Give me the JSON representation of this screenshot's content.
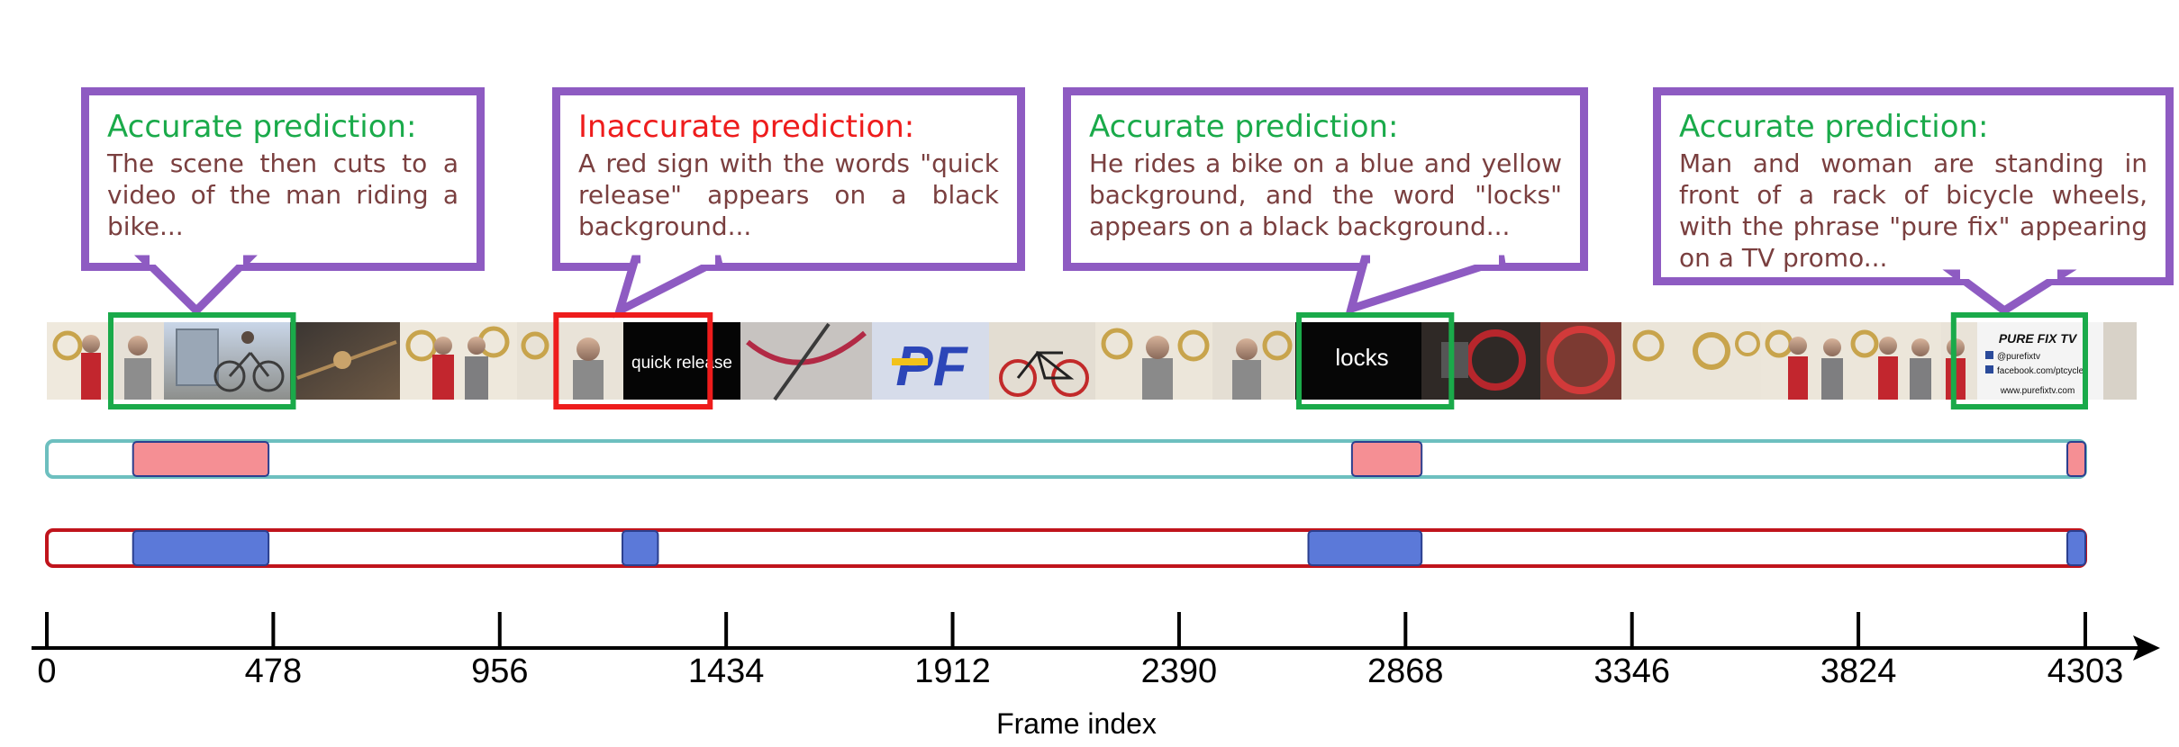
{
  "callouts": [
    {
      "status": "accurate",
      "heading": "Accurate prediction:",
      "text": "The scene then cuts to a video of the man riding a bike..."
    },
    {
      "status": "inaccurate",
      "heading": "Inaccurate prediction:",
      "text": "A red sign with the words \"quick release\" appears on a black background..."
    },
    {
      "status": "accurate",
      "heading": "Accurate prediction:",
      "text": "He rides a bike on a blue and yellow background, and the word \"locks\" appears on a black background..."
    },
    {
      "status": "accurate",
      "heading": "Accurate prediction:",
      "text": "Man and woman are standing in front of a rack of bicycle wheels, with the phrase \"pure fix\" appearing on a TV promo..."
    }
  ],
  "frame_texts": {
    "quick_release": "quick release",
    "locks": "locks",
    "purefix_logo": "PURE FIX TV",
    "purefix_handle": "@purefixtv",
    "purefix_facebook": "facebook.com/ptcycles",
    "purefix_site": "www.purefixtv.com"
  },
  "colors": {
    "accurate": "#1aaa4a",
    "inaccurate": "#ee1c1c",
    "callout_border": "#8e5bc2",
    "body_text": "#7a3f3f",
    "track_top_border": "#6dbfbf",
    "track_top_fill": "#f58f94",
    "track_bottom_border": "#c0141c",
    "track_bottom_fill": "#5b79d9",
    "segment_edge": "#2b3f8f"
  },
  "chart_data": {
    "type": "timeline",
    "xlabel": "Frame index",
    "x_ticks": [
      0,
      478,
      956,
      1434,
      1912,
      2390,
      2868,
      3346,
      3824,
      4303
    ],
    "xlim": [
      0,
      4303
    ],
    "tracks": [
      {
        "segments": [
          [
            182,
            468
          ],
          [
            2755,
            2902
          ],
          [
            4265,
            4303
          ]
        ]
      },
      {
        "segments": [
          [
            182,
            468
          ],
          [
            1215,
            1290
          ],
          [
            2663,
            2902
          ],
          [
            4265,
            4303
          ]
        ]
      }
    ],
    "highlights": [
      {
        "status": "accurate",
        "range": [
          135,
          520
        ]
      },
      {
        "status": "inaccurate",
        "range": [
          1075,
          1400
        ]
      },
      {
        "status": "accurate",
        "range": [
          2643,
          2965
        ]
      },
      {
        "status": "accurate",
        "range": [
          4025,
          4303
        ]
      }
    ]
  }
}
